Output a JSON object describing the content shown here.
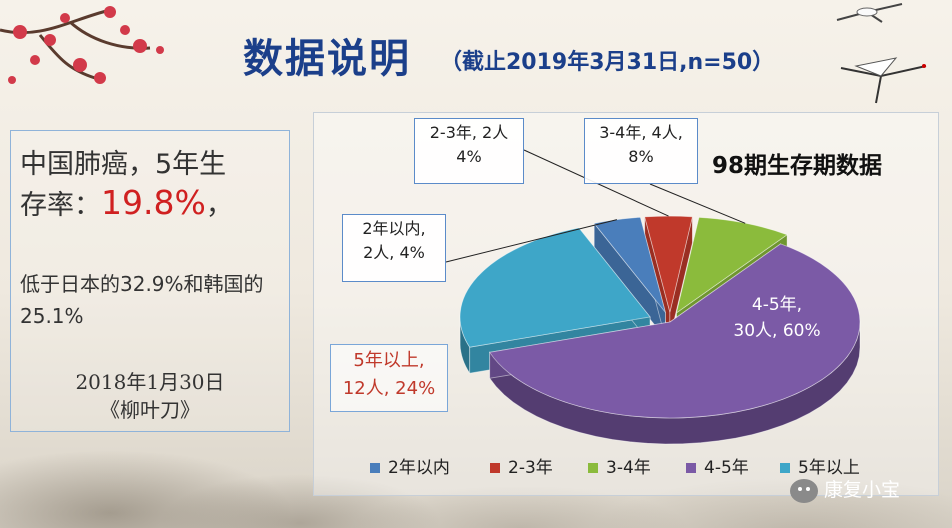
{
  "header": {
    "title": "数据说明",
    "subtitle": "（截止2019年3月31日,n=50）"
  },
  "left_panel": {
    "line1": "中国肺癌，5年生",
    "line2_prefix": "存率：",
    "rate": "19.8%",
    "line2_suffix": "，",
    "comparison": "低于日本的32.9%和韩国的25.1%",
    "date": "2018年1月30日",
    "source": "《柳叶刀》"
  },
  "chart_data": {
    "type": "pie",
    "title": "98期生存期数据",
    "legend_position": "bottom",
    "slices": [
      {
        "name": "2年以内",
        "count": 2,
        "percent": 4,
        "color": "#4a7ebb",
        "label": "2年以内,\n2人, 4%"
      },
      {
        "name": "2-3年",
        "count": 2,
        "percent": 4,
        "color": "#c0392b",
        "label": "2-3年, 2人\n4%"
      },
      {
        "name": "3-4年",
        "count": 4,
        "percent": 8,
        "color": "#8bbb3c",
        "label": "3-4年, 4人,\n8%"
      },
      {
        "name": "4-5年",
        "count": 30,
        "percent": 60,
        "color": "#7b5aa6",
        "label": "4-5年,\n30人, 60%"
      },
      {
        "name": "5年以上",
        "count": 12,
        "percent": 24,
        "color": "#3ea6c8",
        "label": "5年以上,\n12人, 24%"
      }
    ]
  },
  "watermark": "康复小宝"
}
